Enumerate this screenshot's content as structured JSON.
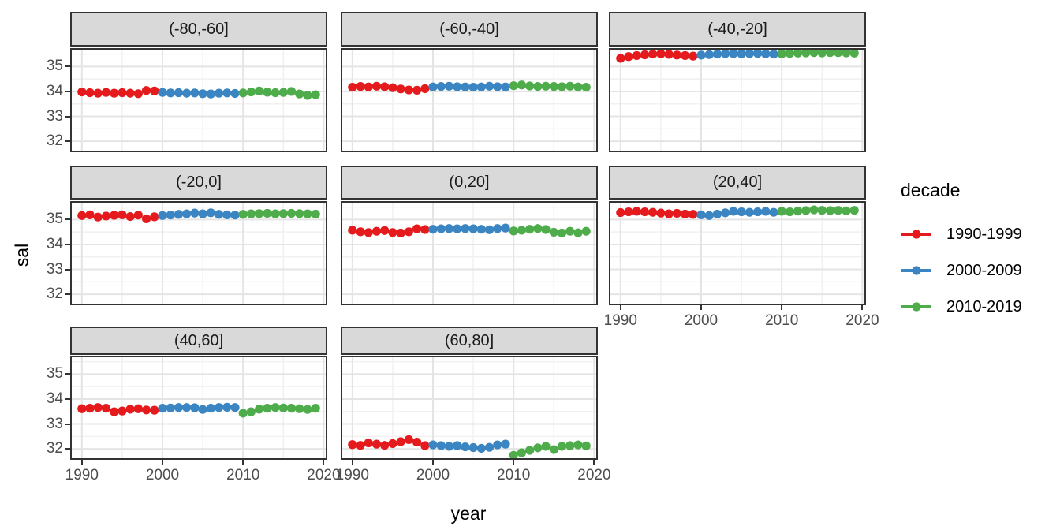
{
  "figure": {
    "x_axis_title": "year",
    "y_axis_title": "sal"
  },
  "chart_data": {
    "type": "scatter",
    "title": "",
    "xlabel": "year",
    "ylabel": "sal",
    "grid": "on",
    "facet_layout": "3x3 grid, 8 facets (latitude bands)",
    "x_domain": [
      1988.55,
      2020.45
    ],
    "y_domain": [
      31.56,
      35.74
    ],
    "x_ticks": [
      1990,
      2000,
      2010,
      2020
    ],
    "y_ticks": [
      35,
      34,
      33,
      32
    ],
    "x_minor_ticks": [
      1995,
      2005,
      2015
    ],
    "y_minor_ticks": [
      35.5,
      34.5,
      33.5,
      32.5
    ],
    "years": [
      1990,
      1991,
      1992,
      1993,
      1994,
      1995,
      1996,
      1997,
      1998,
      1999,
      2000,
      2001,
      2002,
      2003,
      2004,
      2005,
      2006,
      2007,
      2008,
      2009,
      2010,
      2011,
      2012,
      2013,
      2014,
      2015,
      2016,
      2017,
      2018,
      2019
    ],
    "legend": {
      "title": "decade",
      "position": "right",
      "entries": [
        {
          "label": "1990-1999",
          "color": "#E41A1C",
          "years": [
            1990,
            1999
          ]
        },
        {
          "label": "2000-2009",
          "color": "#3A85C2",
          "years": [
            2000,
            2009
          ]
        },
        {
          "label": "2010-2019",
          "color": "#4EAC4B",
          "years": [
            2010,
            2019
          ]
        }
      ]
    },
    "facets": [
      {
        "label": "(-80,-60]",
        "sal": [
          33.98,
          33.95,
          33.93,
          33.96,
          33.93,
          33.95,
          33.93,
          33.91,
          34.04,
          34.02,
          33.96,
          33.94,
          33.95,
          33.93,
          33.94,
          33.91,
          33.9,
          33.93,
          33.94,
          33.92,
          33.94,
          33.98,
          34.02,
          33.97,
          33.95,
          33.96,
          34.0,
          33.9,
          33.84,
          33.87
        ]
      },
      {
        "label": "(-60,-40]",
        "sal": [
          34.17,
          34.2,
          34.18,
          34.21,
          34.19,
          34.15,
          34.1,
          34.06,
          34.05,
          34.11,
          34.18,
          34.2,
          34.21,
          34.19,
          34.18,
          34.17,
          34.18,
          34.21,
          34.19,
          34.18,
          34.23,
          34.26,
          34.22,
          34.2,
          34.21,
          34.2,
          34.19,
          34.21,
          34.18,
          34.17
        ]
      },
      {
        "label": "(-40,-20]",
        "sal": [
          35.33,
          35.4,
          35.44,
          35.47,
          35.5,
          35.51,
          35.49,
          35.46,
          35.44,
          35.42,
          35.46,
          35.48,
          35.5,
          35.52,
          35.52,
          35.51,
          35.52,
          35.53,
          35.51,
          35.5,
          35.51,
          35.53,
          35.54,
          35.55,
          35.56,
          35.55,
          35.56,
          35.56,
          35.55,
          35.54
        ]
      },
      {
        "label": "(-20,0]",
        "sal": [
          35.16,
          35.19,
          35.1,
          35.14,
          35.17,
          35.19,
          35.12,
          35.18,
          35.03,
          35.11,
          35.16,
          35.18,
          35.21,
          35.23,
          35.26,
          35.23,
          35.27,
          35.21,
          35.19,
          35.18,
          35.21,
          35.23,
          35.24,
          35.25,
          35.23,
          35.24,
          35.25,
          35.24,
          35.23,
          35.22
        ]
      },
      {
        "label": "(0,20]",
        "sal": [
          34.57,
          34.51,
          34.48,
          34.53,
          34.56,
          34.48,
          34.46,
          34.51,
          34.63,
          34.6,
          34.61,
          34.63,
          34.64,
          34.63,
          34.64,
          34.63,
          34.61,
          34.59,
          34.64,
          34.66,
          34.54,
          34.57,
          34.61,
          34.64,
          34.6,
          34.49,
          34.46,
          34.53,
          34.47,
          34.53
        ]
      },
      {
        "label": "(20,40]",
        "sal": [
          35.28,
          35.31,
          35.33,
          35.31,
          35.29,
          35.26,
          35.23,
          35.25,
          35.22,
          35.21,
          35.19,
          35.16,
          35.22,
          35.27,
          35.33,
          35.31,
          35.29,
          35.31,
          35.33,
          35.29,
          35.33,
          35.31,
          35.34,
          35.36,
          35.39,
          35.37,
          35.36,
          35.37,
          35.35,
          35.37
        ]
      },
      {
        "label": "(40,60]",
        "sal": [
          33.61,
          33.63,
          33.66,
          33.63,
          33.49,
          33.52,
          33.59,
          33.61,
          33.56,
          33.55,
          33.63,
          33.64,
          33.66,
          33.66,
          33.65,
          33.58,
          33.63,
          33.66,
          33.67,
          33.66,
          33.43,
          33.49,
          33.59,
          33.63,
          33.66,
          33.64,
          33.63,
          33.61,
          33.58,
          33.63
        ]
      },
      {
        "label": "(60,80]",
        "sal": [
          32.17,
          32.14,
          32.24,
          32.19,
          32.14,
          32.21,
          32.29,
          32.37,
          32.27,
          32.13,
          32.16,
          32.13,
          32.1,
          32.13,
          32.08,
          32.05,
          32.02,
          32.06,
          32.16,
          32.19,
          31.74,
          31.84,
          31.94,
          32.04,
          32.1,
          31.97,
          32.1,
          32.13,
          32.16,
          32.12
        ]
      }
    ],
    "style": {
      "strip_bg": "#d9d9d9",
      "panel_border": "#333333",
      "grid_major": "#e4e4e4",
      "grid_minor": "#f1f1f1",
      "tick_text": "#4d4d4d"
    }
  }
}
